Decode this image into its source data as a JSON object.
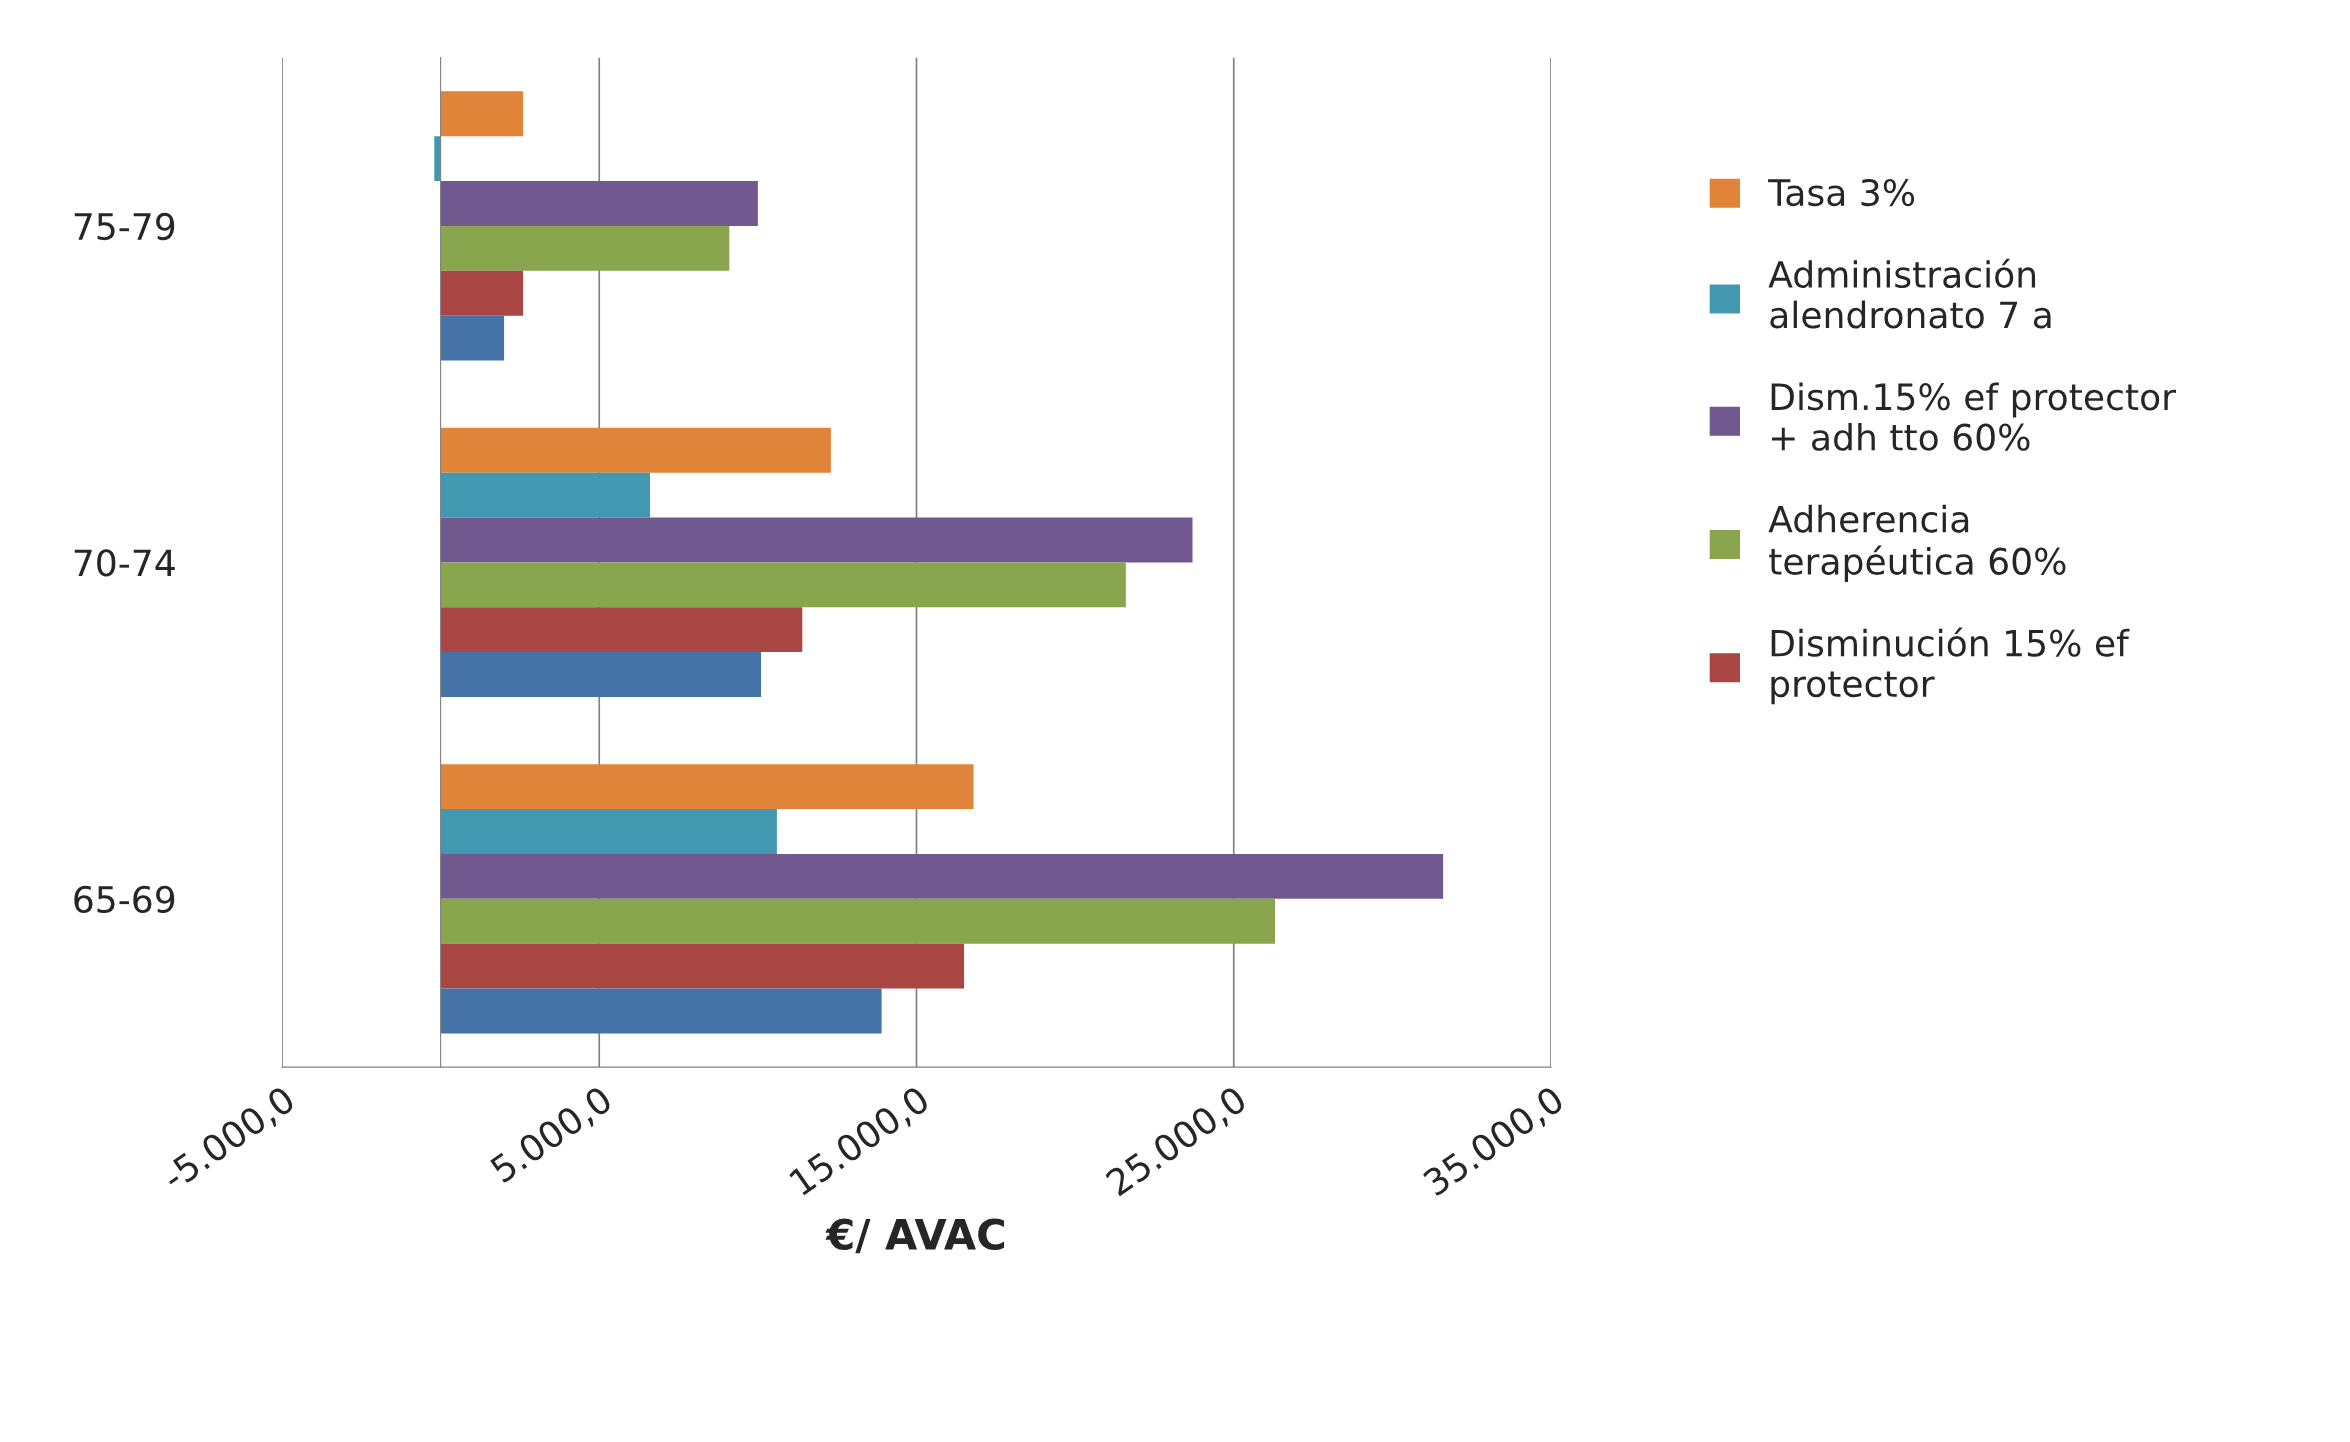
{
  "chart_data": {
    "type": "bar",
    "orientation": "horizontal",
    "xlabel": "€/ AVAC",
    "categories": [
      "75-79",
      "70-74",
      "65-69"
    ],
    "series": [
      {
        "name": "Tasa 3%",
        "color": "#e0843a",
        "values": [
          2600,
          12300,
          16800
        ]
      },
      {
        "name": "Administración alendronato 7 a",
        "color": "#4298b0",
        "values": [
          -200,
          6600,
          10600
        ]
      },
      {
        "name": "Dism.15% ef protector + adh tto 60%",
        "color": "#71588f",
        "values": [
          10000,
          23700,
          31600
        ]
      },
      {
        "name": "Adherencia terapéutica 60%",
        "color": "#89a54e",
        "values": [
          9100,
          21600,
          26300
        ]
      },
      {
        "name": "Disminución 15% ef protector",
        "color": "#aa4643",
        "values": [
          2600,
          11400,
          16500
        ]
      },
      {
        "color": "#4572a7",
        "values": [
          2000,
          10100,
          13900
        ]
      }
    ],
    "xlim": [
      -5000,
      35000
    ],
    "xticks": [
      {
        "value": -5000,
        "label": "-5.000,0"
      },
      {
        "value": 5000,
        "label": "5.000,0"
      },
      {
        "value": 15000,
        "label": "15.000,0"
      },
      {
        "value": 25000,
        "label": "25.000,0"
      },
      {
        "value": 35000,
        "label": "35.000,0"
      }
    ],
    "grid": "x",
    "legend": "right"
  }
}
